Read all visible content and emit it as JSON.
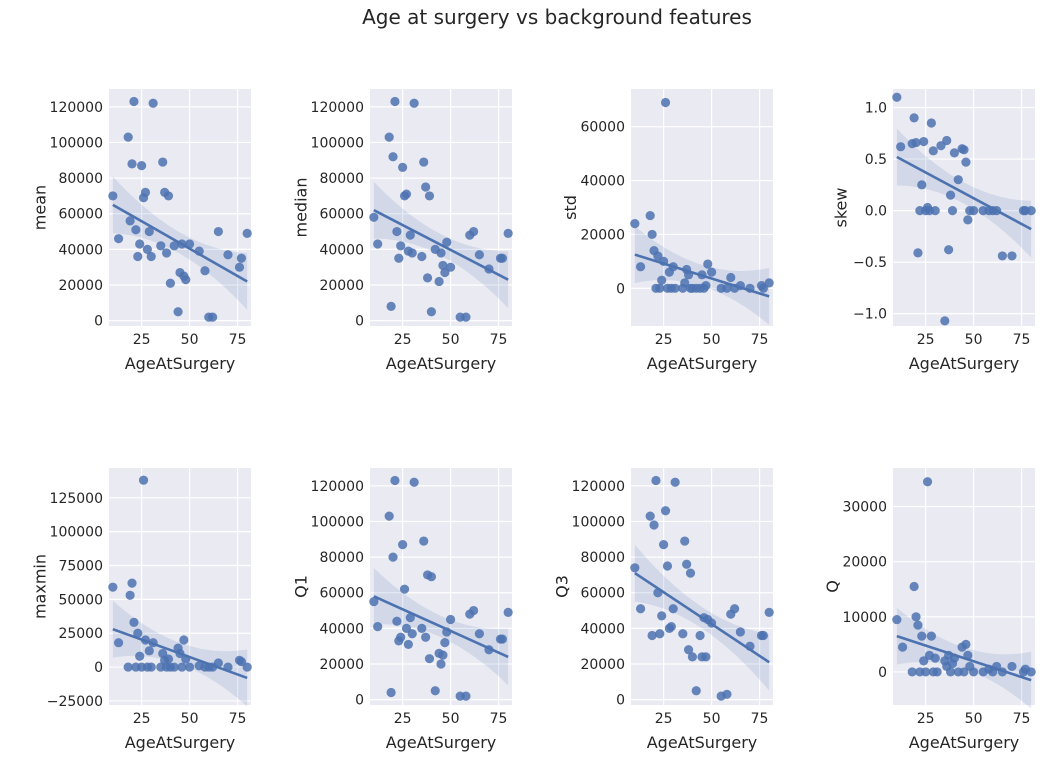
{
  "figure": {
    "title": "Age at surgery vs background features",
    "colors": {
      "background": "#eaeaf2",
      "grid": "#ffffff",
      "points": "#4c72b0",
      "band": "#4c72b0"
    }
  },
  "chart_data": [
    {
      "type": "scatter",
      "title": "",
      "xlabel": "AgeAtSurgery",
      "ylabel": "mean",
      "xlim": [
        8,
        82
      ],
      "ylim": [
        -3000,
        130000
      ],
      "grid": true,
      "xticks": [
        25,
        50,
        75
      ],
      "yticks": [
        0,
        20000,
        40000,
        60000,
        80000,
        100000,
        120000
      ],
      "x": [
        10,
        13,
        18,
        19,
        20,
        21,
        22,
        23,
        24,
        25,
        26,
        27,
        28,
        29,
        30,
        31,
        35,
        36,
        37,
        38,
        39,
        40,
        42,
        44,
        45,
        46,
        47,
        48,
        50,
        55,
        58,
        60,
        62,
        65,
        70,
        76,
        77,
        80
      ],
      "y": [
        70000,
        46000,
        103000,
        56000,
        88000,
        123000,
        51000,
        36000,
        43000,
        87000,
        69000,
        72000,
        40000,
        50000,
        36000,
        122000,
        42000,
        89000,
        72000,
        38000,
        70000,
        21000,
        42000,
        5000,
        27000,
        43000,
        25000,
        23000,
        43000,
        39000,
        28000,
        2000,
        2000,
        50000,
        37000,
        30000,
        35000,
        49000
      ],
      "fit": {
        "x": [
          10,
          80
        ],
        "y": [
          65000,
          22000
        ]
      }
    },
    {
      "type": "scatter",
      "title": "",
      "xlabel": "AgeAtSurgery",
      "ylabel": "median",
      "xlim": [
        8,
        82
      ],
      "ylim": [
        -3000,
        130000
      ],
      "grid": true,
      "xticks": [
        25,
        50,
        75
      ],
      "yticks": [
        0,
        20000,
        40000,
        60000,
        80000,
        100000,
        120000
      ],
      "x": [
        10,
        12,
        18,
        19,
        20,
        21,
        22,
        23,
        24,
        25,
        26,
        27,
        28,
        29,
        30,
        31,
        35,
        36,
        37,
        38,
        39,
        40,
        42,
        44,
        45,
        46,
        47,
        48,
        50,
        55,
        58,
        60,
        62,
        65,
        70,
        76,
        77,
        80
      ],
      "y": [
        58000,
        43000,
        103000,
        8000,
        92000,
        123000,
        50000,
        35000,
        42000,
        86000,
        70000,
        71000,
        39000,
        48000,
        38000,
        122000,
        36000,
        89000,
        75000,
        24000,
        70000,
        5000,
        40000,
        22000,
        38000,
        31000,
        27000,
        44000,
        30000,
        2000,
        2000,
        48000,
        50000,
        37000,
        29000,
        35000,
        35000,
        49000
      ],
      "fit": {
        "x": [
          10,
          80
        ],
        "y": [
          62000,
          23000
        ]
      }
    },
    {
      "type": "scatter",
      "title": "",
      "xlabel": "AgeAtSurgery",
      "ylabel": "std",
      "xlim": [
        8,
        82
      ],
      "ylim": [
        -14000,
        74000
      ],
      "grid": true,
      "xticks": [
        25,
        50,
        75
      ],
      "yticks": [
        0,
        20000,
        40000,
        60000
      ],
      "x": [
        10,
        13,
        18,
        19,
        20,
        21,
        22,
        23,
        24,
        25,
        26,
        27,
        28,
        29,
        30,
        31,
        35,
        36,
        37,
        38,
        39,
        40,
        42,
        44,
        45,
        46,
        47,
        48,
        50,
        55,
        58,
        60,
        62,
        65,
        70,
        76,
        77,
        80
      ],
      "y": [
        24000,
        8000,
        27000,
        20000,
        14000,
        0,
        12000,
        0,
        3000,
        10000,
        69000,
        0,
        6000,
        0,
        8000,
        0,
        0,
        2000,
        7000,
        5000,
        0,
        0,
        0,
        0,
        5000,
        0,
        1000,
        9000,
        6000,
        0,
        0,
        4000,
        0,
        1000,
        0,
        1000,
        0,
        2000
      ],
      "fit": {
        "x": [
          10,
          80
        ],
        "y": [
          12500,
          -3000
        ]
      }
    },
    {
      "type": "scatter",
      "title": "",
      "xlabel": "AgeAtSurgery",
      "ylabel": "skew",
      "xlim": [
        8,
        82
      ],
      "ylim": [
        -1.12,
        1.18
      ],
      "grid": true,
      "xticks": [
        25,
        50,
        75
      ],
      "yticks": [
        -1.0,
        -0.5,
        0.0,
        0.5,
        1.0
      ],
      "x": [
        10,
        12,
        18,
        19,
        20,
        21,
        22,
        23,
        24,
        25,
        26,
        27,
        28,
        29,
        30,
        33,
        35,
        36,
        37,
        38,
        39,
        40,
        42,
        44,
        45,
        46,
        47,
        48,
        50,
        55,
        58,
        60,
        62,
        65,
        70,
        76,
        77,
        80
      ],
      "y": [
        1.1,
        0.62,
        0.65,
        0.9,
        0.66,
        -0.41,
        0.0,
        0.25,
        0.67,
        0.0,
        0.03,
        0.0,
        0.85,
        0.58,
        0.0,
        0.63,
        -1.07,
        0.68,
        -0.38,
        0.15,
        0.0,
        0.56,
        0.3,
        0.6,
        0.59,
        0.47,
        -0.09,
        0.0,
        0.0,
        0.0,
        0.0,
        0.0,
        0.0,
        -0.44,
        -0.44,
        0.0,
        0.0,
        0.0
      ],
      "fit": {
        "x": [
          10,
          80
        ],
        "y": [
          0.52,
          -0.18
        ]
      }
    },
    {
      "type": "scatter",
      "title": "",
      "xlabel": "AgeAtSurgery",
      "ylabel": "maxmin",
      "xlim": [
        8,
        82
      ],
      "ylim": [
        -28000,
        147000
      ],
      "grid": true,
      "xticks": [
        25,
        50,
        75
      ],
      "yticks": [
        -25000,
        0,
        25000,
        50000,
        75000,
        100000,
        125000
      ],
      "x": [
        10,
        13,
        18,
        19,
        20,
        21,
        22,
        23,
        24,
        25,
        26,
        27,
        28,
        29,
        30,
        31,
        35,
        36,
        37,
        38,
        39,
        40,
        42,
        44,
        45,
        46,
        47,
        48,
        50,
        55,
        58,
        60,
        62,
        65,
        70,
        76,
        77,
        80
      ],
      "y": [
        59000,
        18000,
        0,
        53000,
        62000,
        33000,
        0,
        25000,
        8000,
        0,
        138000,
        20000,
        0,
        12000,
        0,
        18000,
        0,
        10000,
        5000,
        0,
        6000,
        0,
        0,
        14000,
        10000,
        0,
        20000,
        6000,
        0,
        1000,
        0,
        0,
        0,
        3000,
        0,
        5000,
        4000,
        0
      ],
      "fit": {
        "x": [
          10,
          80
        ],
        "y": [
          28000,
          -8000
        ]
      }
    },
    {
      "type": "scatter",
      "title": "",
      "xlabel": "AgeAtSurgery",
      "ylabel": "Q1",
      "xlim": [
        8,
        82
      ],
      "ylim": [
        -3000,
        130000
      ],
      "grid": true,
      "xticks": [
        25,
        50,
        75
      ],
      "yticks": [
        0,
        20000,
        40000,
        60000,
        80000,
        100000,
        120000
      ],
      "x": [
        10,
        12,
        18,
        19,
        20,
        21,
        22,
        23,
        24,
        25,
        26,
        27,
        28,
        29,
        30,
        31,
        35,
        36,
        37,
        38,
        39,
        40,
        42,
        44,
        45,
        46,
        47,
        48,
        50,
        55,
        58,
        60,
        62,
        65,
        70,
        76,
        77,
        80
      ],
      "y": [
        55000,
        41000,
        103000,
        4000,
        80000,
        123000,
        44000,
        33000,
        35000,
        87000,
        62000,
        40000,
        31000,
        46000,
        37000,
        122000,
        40000,
        89000,
        35000,
        70000,
        23000,
        69000,
        5000,
        26000,
        20000,
        25000,
        32000,
        38000,
        45000,
        2000,
        2000,
        48000,
        50000,
        37000,
        28000,
        34000,
        34000,
        49000
      ],
      "fit": {
        "x": [
          10,
          80
        ],
        "y": [
          58000,
          24000
        ]
      }
    },
    {
      "type": "scatter",
      "title": "",
      "xlabel": "AgeAtSurgery",
      "ylabel": "Q3",
      "xlim": [
        8,
        82
      ],
      "ylim": [
        -3000,
        130000
      ],
      "grid": true,
      "xticks": [
        25,
        50,
        75
      ],
      "yticks": [
        0,
        20000,
        40000,
        60000,
        80000,
        100000,
        120000
      ],
      "x": [
        10,
        13,
        18,
        19,
        20,
        21,
        22,
        23,
        24,
        25,
        26,
        27,
        28,
        29,
        30,
        31,
        35,
        36,
        37,
        38,
        39,
        40,
        42,
        44,
        45,
        46,
        47,
        48,
        50,
        55,
        58,
        60,
        62,
        65,
        70,
        76,
        77,
        80
      ],
      "y": [
        74000,
        51000,
        103000,
        36000,
        98000,
        123000,
        60000,
        37000,
        47000,
        87000,
        106000,
        75000,
        40000,
        41000,
        51000,
        122000,
        37000,
        89000,
        76000,
        28000,
        71000,
        24000,
        5000,
        36000,
        24000,
        46000,
        24000,
        45000,
        43000,
        2000,
        3000,
        48000,
        51000,
        38000,
        30000,
        36000,
        36000,
        49000
      ],
      "fit": {
        "x": [
          10,
          80
        ],
        "y": [
          71000,
          21000
        ]
      }
    },
    {
      "type": "scatter",
      "title": "",
      "xlabel": "AgeAtSurgery",
      "ylabel": "Q",
      "xlim": [
        8,
        82
      ],
      "ylim": [
        -6000,
        37000
      ],
      "grid": true,
      "xticks": [
        25,
        50,
        75
      ],
      "yticks": [
        0,
        10000,
        20000,
        30000
      ],
      "x": [
        10,
        13,
        18,
        19,
        20,
        21,
        22,
        23,
        24,
        25,
        26,
        27,
        28,
        29,
        30,
        31,
        35,
        36,
        37,
        38,
        39,
        40,
        42,
        44,
        45,
        46,
        47,
        48,
        50,
        55,
        58,
        60,
        62,
        65,
        70,
        76,
        77,
        80
      ],
      "y": [
        9500,
        4500,
        0,
        15500,
        10000,
        8500,
        0,
        6500,
        2000,
        0,
        34500,
        3000,
        6500,
        0,
        2500,
        0,
        2000,
        1000,
        3000,
        0,
        1500,
        2500,
        0,
        4500,
        0,
        5000,
        3000,
        1000,
        0,
        0,
        500,
        0,
        1000,
        0,
        1000,
        0,
        500,
        0
      ],
      "fit": {
        "x": [
          10,
          80
        ],
        "y": [
          6500,
          -1500
        ]
      }
    }
  ]
}
